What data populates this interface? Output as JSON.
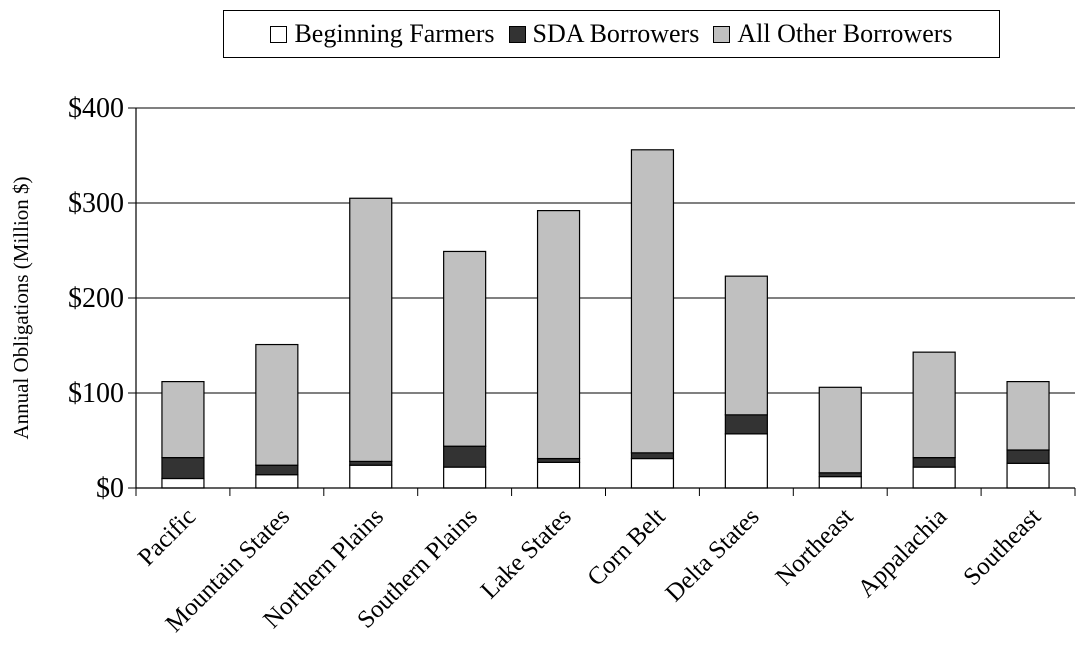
{
  "chart_data": {
    "type": "bar",
    "stacked": true,
    "categories": [
      "Pacific",
      "Mountain States",
      "Northern Plains",
      "Southern Plains",
      "Lake States",
      "Corn Belt",
      "Delta States",
      "Northeast",
      "Appalachia",
      "Southeast"
    ],
    "series": [
      {
        "name": "Beginning Farmers",
        "color": "#ffffff",
        "values": [
          10,
          14,
          24,
          22,
          27,
          31,
          57,
          12,
          22,
          26
        ]
      },
      {
        "name": "SDA Borrowers",
        "color": "#333333",
        "values": [
          22,
          10,
          4,
          22,
          4,
          6,
          20,
          4,
          10,
          14
        ]
      },
      {
        "name": "All Other Borrowers",
        "color": "#c0c0c0",
        "values": [
          80,
          127,
          277,
          205,
          261,
          319,
          146,
          90,
          111,
          72
        ]
      }
    ],
    "title": "",
    "xlabel": "",
    "ylabel": "Annual Obligations (Million $)",
    "ylim": [
      0,
      400
    ],
    "yticks": [
      0,
      100,
      200,
      300,
      400
    ],
    "ytick_labels": [
      "$0",
      "$100",
      "$200",
      "$300",
      "$400"
    ],
    "grid": true,
    "legend_position": "top"
  }
}
